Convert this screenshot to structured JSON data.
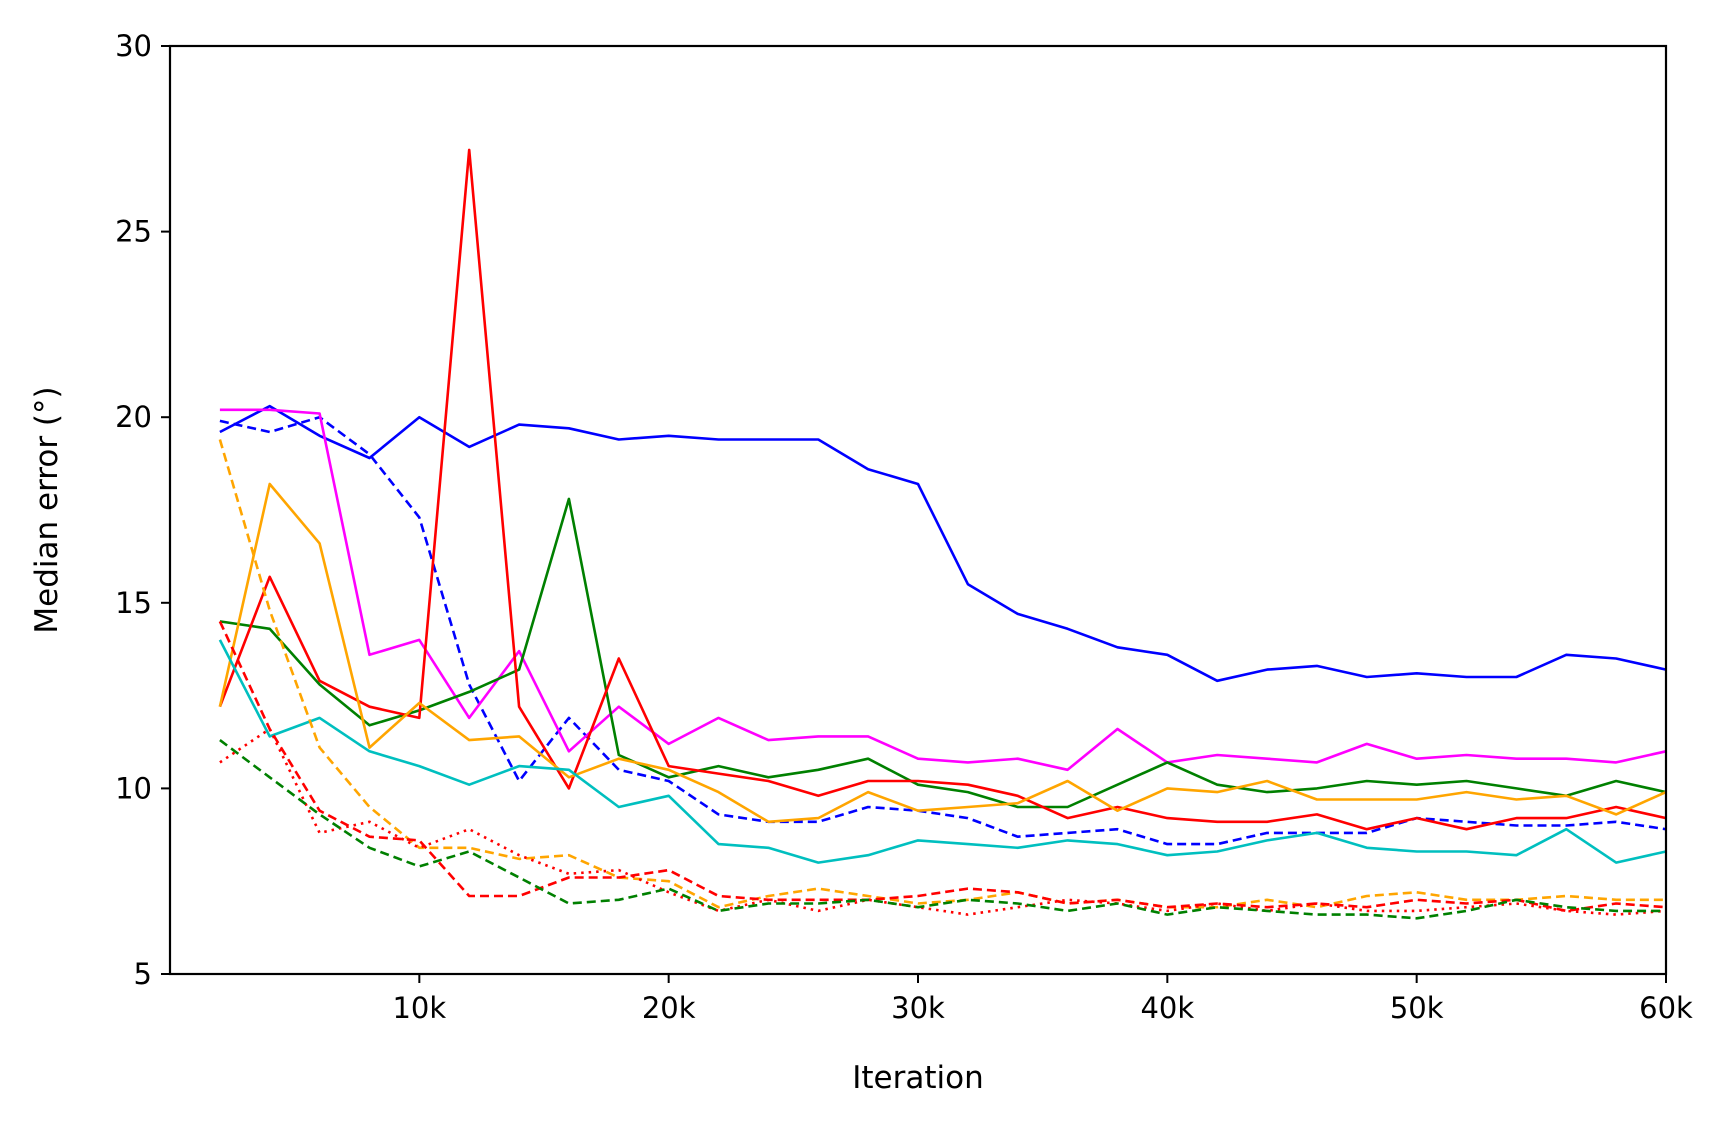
{
  "chart_data": {
    "type": "line",
    "title": "",
    "xlabel": "Iteration",
    "ylabel": "Median error (°)",
    "xlim": [
      0,
      60000
    ],
    "ylim": [
      5,
      30
    ],
    "x_ticks": [
      {
        "value": 10000,
        "label": "10k"
      },
      {
        "value": 20000,
        "label": "20k"
      },
      {
        "value": 30000,
        "label": "30k"
      },
      {
        "value": 40000,
        "label": "40k"
      },
      {
        "value": 50000,
        "label": "50k"
      },
      {
        "value": 60000,
        "label": "60k"
      }
    ],
    "y_ticks": [
      {
        "value": 5,
        "label": "5"
      },
      {
        "value": 10,
        "label": "10"
      },
      {
        "value": 15,
        "label": "15"
      },
      {
        "value": 20,
        "label": "20"
      },
      {
        "value": 25,
        "label": "25"
      },
      {
        "value": 30,
        "label": "30"
      }
    ],
    "x": [
      2000,
      4000,
      6000,
      8000,
      10000,
      12000,
      14000,
      16000,
      18000,
      20000,
      22000,
      24000,
      26000,
      28000,
      30000,
      32000,
      34000,
      36000,
      38000,
      40000,
      42000,
      44000,
      46000,
      48000,
      50000,
      52000,
      54000,
      56000,
      58000,
      60000
    ],
    "series": [
      {
        "name": "blue solid",
        "color": "#0000ff",
        "style": "solid",
        "values": [
          19.6,
          20.3,
          19.5,
          18.9,
          20.0,
          19.2,
          19.8,
          19.7,
          19.4,
          19.5,
          19.4,
          19.4,
          19.4,
          18.6,
          18.2,
          15.5,
          14.7,
          14.3,
          13.8,
          13.6,
          12.9,
          13.2,
          13.3,
          13.0,
          13.1,
          13.0,
          13.0,
          13.6,
          13.5,
          13.2
        ]
      },
      {
        "name": "blue dashed",
        "color": "#0000ff",
        "style": "dashed",
        "values": [
          19.9,
          19.6,
          20.0,
          19.0,
          17.3,
          12.8,
          10.2,
          11.9,
          10.5,
          10.2,
          9.3,
          9.1,
          9.1,
          9.5,
          9.4,
          9.2,
          8.7,
          8.8,
          8.9,
          8.5,
          8.5,
          8.8,
          8.8,
          8.8,
          9.2,
          9.1,
          9.0,
          9.0,
          9.1,
          8.9
        ]
      },
      {
        "name": "magenta solid",
        "color": "#ff00ff",
        "style": "solid",
        "values": [
          20.2,
          20.2,
          20.1,
          13.6,
          14.0,
          11.9,
          13.7,
          11.0,
          12.2,
          11.2,
          11.9,
          11.3,
          11.4,
          11.4,
          10.8,
          10.7,
          10.8,
          10.5,
          11.6,
          10.7,
          10.9,
          10.8,
          10.7,
          11.2,
          10.8,
          10.9,
          10.8,
          10.8,
          10.7,
          11.0
        ]
      },
      {
        "name": "green solid",
        "color": "#008000",
        "style": "solid",
        "values": [
          14.5,
          14.3,
          12.8,
          11.7,
          12.1,
          12.6,
          13.2,
          17.8,
          10.9,
          10.3,
          10.6,
          10.3,
          10.5,
          10.8,
          10.1,
          9.9,
          9.5,
          9.5,
          10.1,
          10.7,
          10.1,
          9.9,
          10.0,
          10.2,
          10.1,
          10.2,
          10.0,
          9.8,
          10.2,
          9.9
        ]
      },
      {
        "name": "red solid",
        "color": "#ff0000",
        "style": "solid",
        "values": [
          12.2,
          15.7,
          12.9,
          12.2,
          11.9,
          27.2,
          12.2,
          10.0,
          13.5,
          10.6,
          10.4,
          10.2,
          9.8,
          10.2,
          10.2,
          10.1,
          9.8,
          9.2,
          9.5,
          9.2,
          9.1,
          9.1,
          9.3,
          8.9,
          9.2,
          8.9,
          9.2,
          9.2,
          9.5,
          9.2
        ]
      },
      {
        "name": "orange solid",
        "color": "#ffa500",
        "style": "solid",
        "values": [
          12.2,
          18.2,
          16.6,
          11.1,
          12.3,
          11.3,
          11.4,
          10.3,
          10.8,
          10.5,
          9.9,
          9.1,
          9.2,
          9.9,
          9.4,
          9.5,
          9.6,
          10.2,
          9.4,
          10.0,
          9.9,
          10.2,
          9.7,
          9.7,
          9.7,
          9.9,
          9.7,
          9.8,
          9.3,
          9.9
        ]
      },
      {
        "name": "cyan solid",
        "color": "#00bfbf",
        "style": "solid",
        "values": [
          14.0,
          11.4,
          11.9,
          11.0,
          10.6,
          10.1,
          10.6,
          10.5,
          9.5,
          9.8,
          8.5,
          8.4,
          8.0,
          8.2,
          8.6,
          8.5,
          8.4,
          8.6,
          8.5,
          8.2,
          8.3,
          8.6,
          8.8,
          8.4,
          8.3,
          8.3,
          8.2,
          8.9,
          8.0,
          8.3
        ]
      },
      {
        "name": "orange dashed",
        "color": "#ffa500",
        "style": "dashed",
        "values": [
          19.4,
          14.8,
          11.1,
          9.5,
          8.4,
          8.4,
          8.1,
          8.2,
          7.6,
          7.5,
          6.8,
          7.1,
          7.3,
          7.1,
          6.9,
          7.0,
          7.2,
          6.9,
          7.0,
          6.8,
          6.8,
          7.0,
          6.8,
          7.1,
          7.2,
          7.0,
          7.0,
          7.1,
          7.0,
          7.0
        ]
      },
      {
        "name": "red dashed",
        "color": "#ff0000",
        "style": "dashed",
        "values": [
          14.5,
          11.6,
          9.4,
          8.7,
          8.6,
          7.1,
          7.1,
          7.6,
          7.6,
          7.8,
          7.1,
          7.0,
          7.0,
          7.0,
          7.1,
          7.3,
          7.2,
          6.9,
          7.0,
          6.8,
          6.9,
          6.8,
          6.9,
          6.8,
          7.0,
          6.9,
          7.0,
          6.7,
          6.9,
          6.8
        ]
      },
      {
        "name": "red dotted",
        "color": "#ff0000",
        "style": "dotted",
        "values": [
          10.7,
          11.6,
          8.8,
          9.1,
          8.4,
          8.9,
          8.2,
          7.7,
          7.8,
          7.2,
          6.7,
          7.0,
          6.7,
          7.0,
          6.8,
          6.6,
          6.8,
          7.0,
          6.9,
          6.7,
          6.9,
          6.7,
          6.9,
          6.7,
          6.7,
          6.8,
          6.9,
          6.7,
          6.6,
          6.7
        ]
      },
      {
        "name": "green dashed",
        "color": "#008000",
        "style": "dashed",
        "values": [
          11.3,
          10.3,
          9.3,
          8.4,
          7.9,
          8.3,
          7.6,
          6.9,
          7.0,
          7.3,
          6.7,
          6.9,
          6.9,
          7.0,
          6.8,
          7.0,
          6.9,
          6.7,
          6.9,
          6.6,
          6.8,
          6.7,
          6.6,
          6.6,
          6.5,
          6.7,
          7.0,
          6.8,
          6.7,
          6.7
        ]
      }
    ]
  }
}
